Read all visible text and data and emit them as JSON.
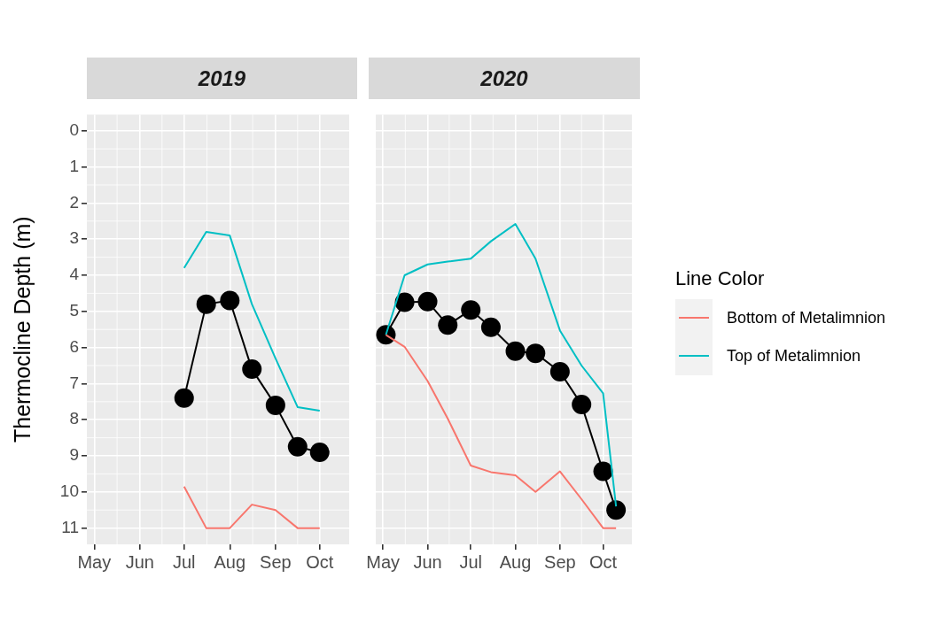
{
  "chart_data": [
    {
      "type": "line",
      "title": "2019",
      "ylabel": "Thermocline Depth (m)",
      "grid": true,
      "legend": false,
      "xlim": [
        "2019-04-26",
        "2019-10-21"
      ],
      "xticks": [
        {
          "value": "2019-05-01",
          "label": "May"
        },
        {
          "value": "2019-06-01",
          "label": "Jun"
        },
        {
          "value": "2019-07-01",
          "label": "Jul"
        },
        {
          "value": "2019-08-01",
          "label": "Aug"
        },
        {
          "value": "2019-09-01",
          "label": "Sep"
        },
        {
          "value": "2019-10-01",
          "label": "Oct"
        }
      ],
      "ylim": [
        11.45,
        -0.45
      ],
      "yticks": [
        0,
        1,
        2,
        3,
        4,
        5,
        6,
        7,
        8,
        9,
        10,
        11
      ],
      "x": [
        "2019-07-01",
        "2019-07-16",
        "2019-08-01",
        "2019-08-16",
        "2019-09-01",
        "2019-09-16",
        "2019-10-01"
      ],
      "series": [
        {
          "color": "#f8766d",
          "marker": "none",
          "values": [
            9.85,
            11,
            11,
            10.35,
            10.5,
            11,
            11
          ]
        },
        {
          "color": "#00bfc4",
          "marker": "none",
          "values": [
            3.8,
            2.8,
            2.9,
            4.8,
            6.3,
            7.65,
            7.75
          ]
        },
        {
          "color": "#000000",
          "marker": "circle",
          "values": [
            7.4,
            4.8,
            4.7,
            6.6,
            7.6,
            8.75,
            8.9
          ]
        }
      ]
    },
    {
      "type": "line",
      "title": "2020",
      "grid": true,
      "legend": "right",
      "legend_title": "Line Color",
      "tick_labels": "x",
      "xlim": [
        "2020-04-26",
        "2020-10-21"
      ],
      "xticks": [
        {
          "value": "2020-05-01",
          "label": "May"
        },
        {
          "value": "2020-06-01",
          "label": "Jun"
        },
        {
          "value": "2020-07-01",
          "label": "Jul"
        },
        {
          "value": "2020-08-01",
          "label": "Aug"
        },
        {
          "value": "2020-09-01",
          "label": "Sep"
        },
        {
          "value": "2020-10-01",
          "label": "Oct"
        }
      ],
      "ylim": [
        11.45,
        -0.45
      ],
      "yticks": [
        0,
        1,
        2,
        3,
        4,
        5,
        6,
        7,
        8,
        9,
        10,
        11
      ],
      "x": [
        "2020-05-03",
        "2020-05-16",
        "2020-06-01",
        "2020-06-15",
        "2020-07-01",
        "2020-07-15",
        "2020-08-01",
        "2020-08-15",
        "2020-09-01",
        "2020-09-16",
        "2020-10-01",
        "2020-10-10"
      ],
      "series": [
        {
          "name": "Bottom of Metalimnion",
          "color": "#f8766d",
          "marker": "none",
          "values": [
            5.65,
            5.98,
            6.93,
            7.97,
            9.27,
            9.45,
            9.54,
            10.0,
            9.43,
            10.2,
            11,
            11
          ]
        },
        {
          "name": "Top of Metalimnion",
          "color": "#00bfc4",
          "marker": "none",
          "values": [
            5.65,
            4.0,
            3.7,
            3.62,
            3.54,
            3.06,
            2.58,
            3.54,
            5.53,
            6.5,
            7.27,
            10.4
          ]
        },
        {
          "color": "#000000",
          "marker": "circle",
          "values": [
            5.65,
            4.75,
            4.73,
            5.38,
            4.96,
            5.44,
            6.1,
            6.16,
            6.67,
            7.58,
            9.43,
            10.5
          ]
        }
      ]
    }
  ]
}
